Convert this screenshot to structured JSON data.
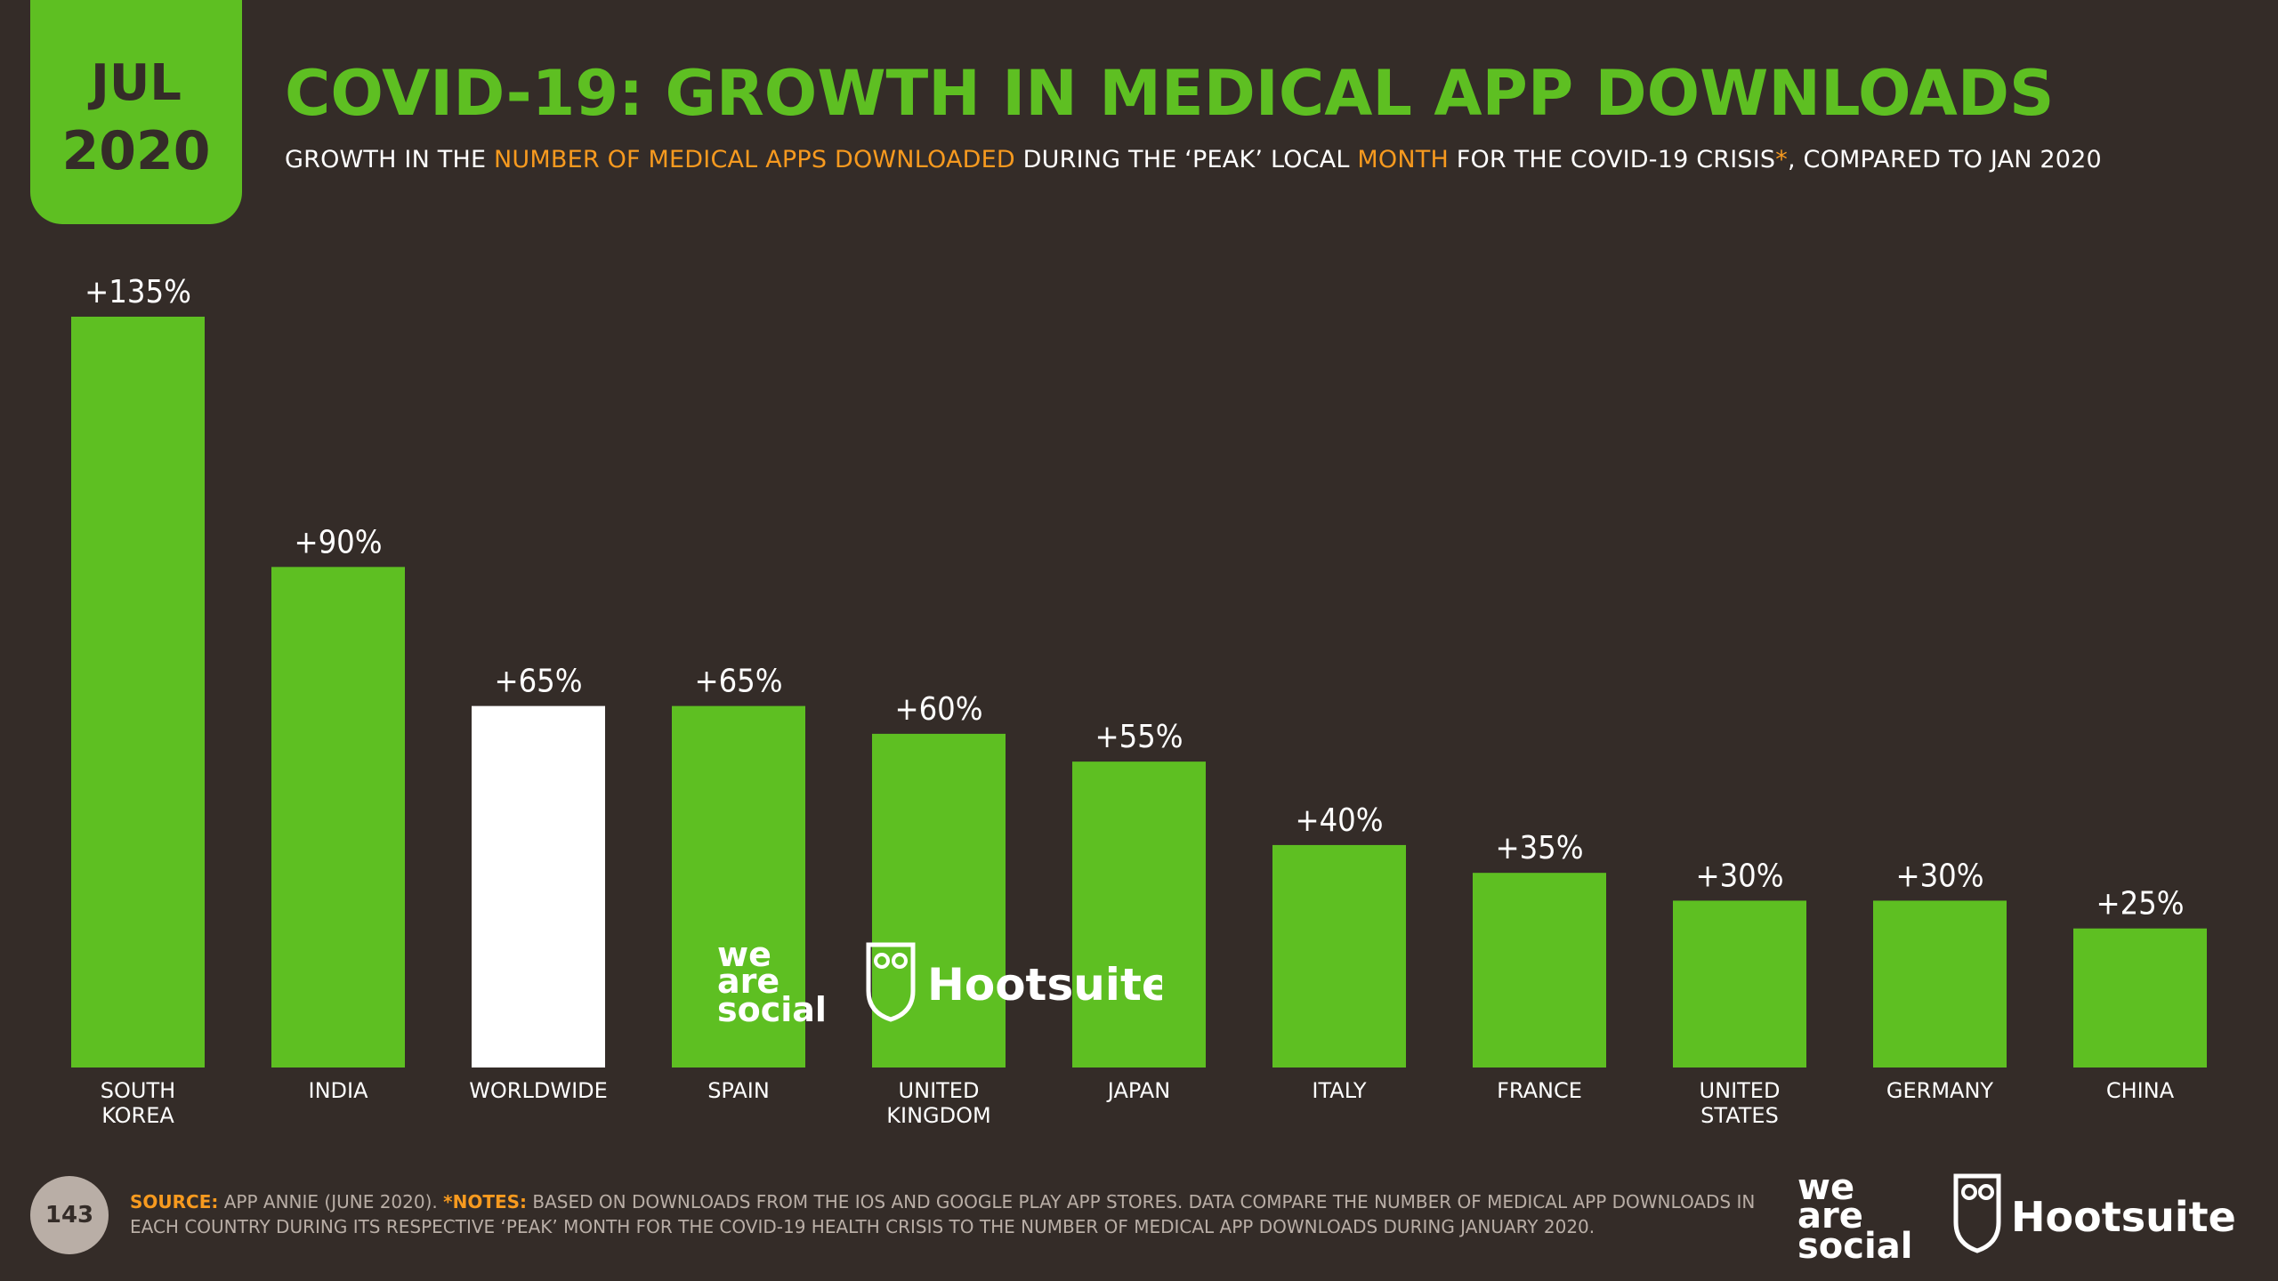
{
  "badge": {
    "month": "JUL",
    "year": "2020"
  },
  "title": "COVID-19: GROWTH IN MEDICAL APP DOWNLOADS",
  "subtitle": {
    "p1": "GROWTH IN THE ",
    "h1": "NUMBER OF MEDICAL APPS DOWNLOADED",
    "p2": " DURING THE ‘PEAK’ LOCAL ",
    "h2": "MONTH",
    "p3": " FOR THE COVID-19 CRISIS",
    "h3": "*",
    "p4": ", COMPARED TO JAN 2020"
  },
  "chart_data": {
    "type": "bar",
    "title": "COVID-19: GROWTH IN MEDICAL APP DOWNLOADS",
    "xlabel": "",
    "ylabel": "",
    "ylim": [
      0,
      135
    ],
    "categories": [
      [
        "SOUTH",
        "KOREA"
      ],
      [
        "INDIA"
      ],
      [
        "WORLDWIDE"
      ],
      [
        "SPAIN"
      ],
      [
        "UNITED",
        "KINGDOM"
      ],
      [
        "JAPAN"
      ],
      [
        "ITALY"
      ],
      [
        "FRANCE"
      ],
      [
        "UNITED",
        "STATES"
      ],
      [
        "GERMANY"
      ],
      [
        "CHINA"
      ]
    ],
    "values": [
      135,
      90,
      65,
      65,
      60,
      55,
      40,
      35,
      30,
      30,
      25
    ],
    "labels": [
      "+135%",
      "+90%",
      "+65%",
      "+65%",
      "+60%",
      "+55%",
      "+40%",
      "+35%",
      "+30%",
      "+30%",
      "+25%"
    ],
    "highlight_index": 2,
    "colors": {
      "bar": "#5ebf22",
      "highlight": "#ffffff"
    }
  },
  "watermark": {
    "we_are_social": [
      "we",
      "are",
      "social"
    ],
    "hootsuite": "Hootsuite"
  },
  "footer": {
    "page_number": "143",
    "source_label": "SOURCE:",
    "source_text": " APP ANNIE (JUNE 2020). ",
    "notes_label": "*NOTES:",
    "notes_text": " BASED ON DOWNLOADS FROM THE IOS AND GOOGLE PLAY APP STORES. DATA COMPARE THE NUMBER OF MEDICAL APP DOWNLOADS IN EACH COUNTRY DURING ITS RESPECTIVE ‘PEAK’ MONTH FOR THE COVID-19 HEALTH CRISIS TO THE NUMBER OF MEDICAL APP DOWNLOADS DURING JANUARY 2020."
  },
  "colors": {
    "background": "#342c28",
    "accent": "#5ebf22",
    "highlight_text": "#f79a1f",
    "muted": "#b9aea6"
  }
}
